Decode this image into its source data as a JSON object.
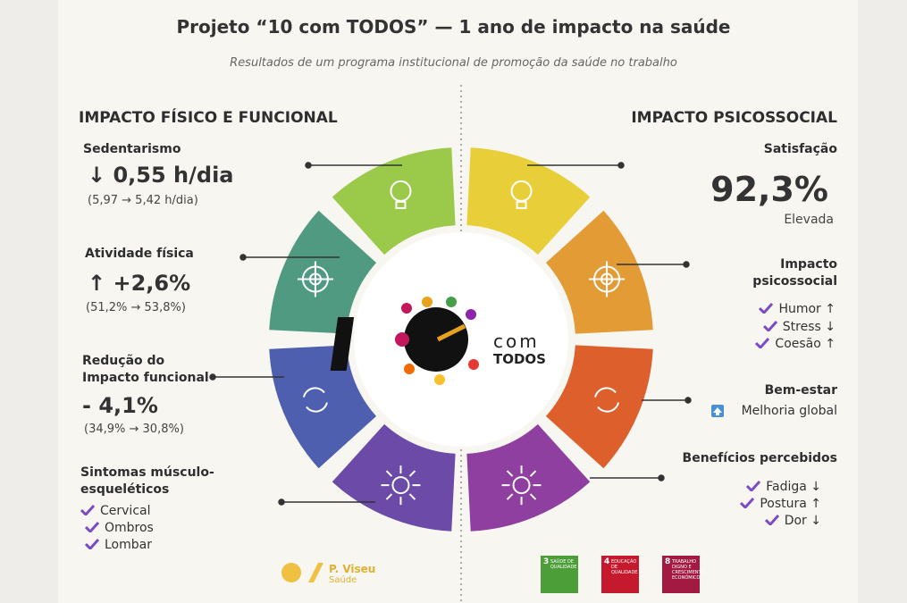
{
  "header": {
    "title": "Projeto “10 com TODOS” — 1 ano de impacto na saúde",
    "subtitle": "Resultados de um programa institucional de promoção da saúde no trabalho"
  },
  "left": {
    "heading": "IMPACTO FÍSICO E FUNCIONAL",
    "items": [
      {
        "label": "Sedentarismo",
        "value": "↓ 0,55 h/dia",
        "detail": "(5,97 → 5,42 h/dia)"
      },
      {
        "label": "Atividade física",
        "value": "↑ +2,6%",
        "detail": "(51,2% → 53,8%)"
      },
      {
        "label": "Redução do Impacto funcional",
        "value": "- 4,1%",
        "detail": "(34,9% → 30,8%)"
      },
      {
        "label": "Sintomas músculo-esqueléticos",
        "list": [
          "Cervical",
          "Ombros",
          "Lombar"
        ]
      }
    ]
  },
  "right": {
    "heading": "IMPACTO PSICOSSOCIAL",
    "items": [
      {
        "label": "Satisfação",
        "value": "92,3%",
        "detail": "Elevada"
      },
      {
        "label": "Impacto psicossocial",
        "list": [
          "Humor ↑",
          "Stress ↓",
          "Coesão ↑"
        ]
      },
      {
        "label": "Bem-estar",
        "detail": "Melhoria global"
      },
      {
        "label": "Benefícios percebidos",
        "list": [
          "Fadiga ↓",
          "Postura ↑",
          "Dor ↓"
        ]
      }
    ]
  },
  "logo": {
    "line1": "com",
    "line2": "TODOS"
  },
  "footer": {
    "brand": "P. Viseu",
    "brand_sub": "Saúde",
    "sdgs": [
      {
        "number": "3",
        "label": "SAÚDE DE QUALIDADE"
      },
      {
        "number": "4",
        "label": "EDUCAÇÃO DE QUALIDADE"
      },
      {
        "number": "8",
        "label": "TRABALHO DIGNO E CRESCIMENTO ECONÓMICO"
      }
    ]
  }
}
